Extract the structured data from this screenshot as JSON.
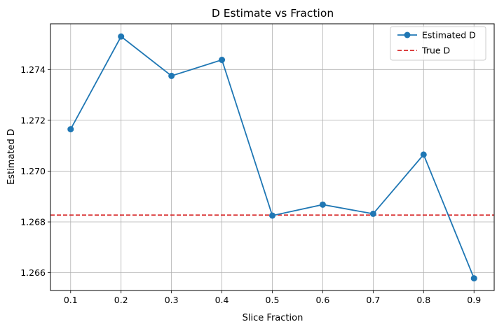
{
  "chart_data": {
    "type": "line",
    "title": "D Estimate vs Fraction",
    "xlabel": "Slice Fraction",
    "ylabel": "Estimated D",
    "x": [
      0.1,
      0.2,
      0.3,
      0.4,
      0.5,
      0.6,
      0.7,
      0.8,
      0.9
    ],
    "xticks": [
      "0.1",
      "0.2",
      "0.3",
      "0.4",
      "0.5",
      "0.6",
      "0.7",
      "0.8",
      "0.9"
    ],
    "yticks": [
      "1.266",
      "1.268",
      "1.270",
      "1.272",
      "1.274"
    ],
    "ytick_values": [
      1.266,
      1.268,
      1.27,
      1.272,
      1.274
    ],
    "xlim": [
      0.06,
      0.94
    ],
    "ylim": [
      1.2653,
      1.2758
    ],
    "grid": true,
    "legend_position": "top-right",
    "series": [
      {
        "name": "Estimated D",
        "color": "#1f77b4",
        "marker": "circle",
        "values": [
          1.27165,
          1.2753,
          1.27375,
          1.27438,
          1.26825,
          1.26868,
          1.26832,
          1.27065,
          1.26578
        ]
      }
    ],
    "reference_lines": [
      {
        "name": "True D",
        "y": 1.26827,
        "color": "#d62728",
        "style": "dashed"
      }
    ]
  }
}
